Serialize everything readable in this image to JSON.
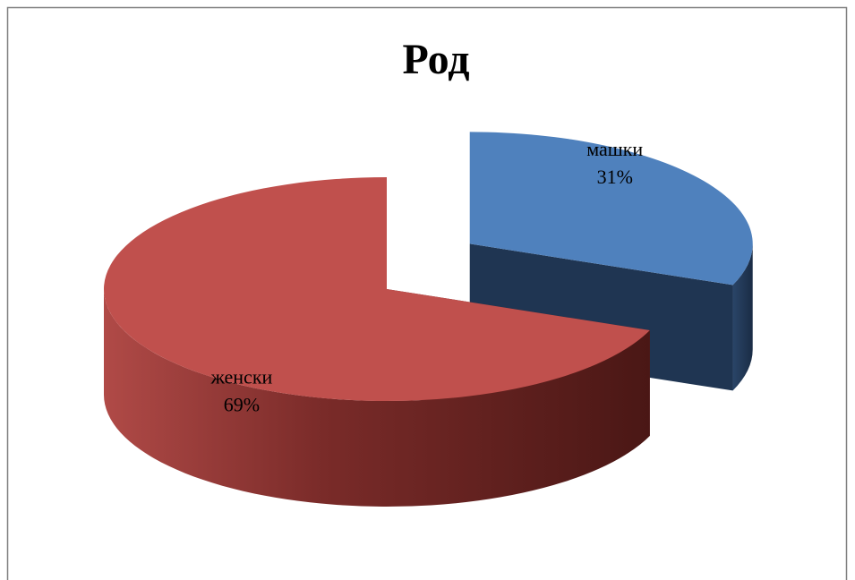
{
  "chart_data": {
    "type": "pie",
    "style": "3d-exploded",
    "title": "Род",
    "slices": [
      {
        "label": "машки",
        "value": 31,
        "value_label": "31%",
        "color": "#4f81bd",
        "side_color": "#1f3552"
      },
      {
        "label": "женски",
        "value": 69,
        "value_label": "69%",
        "color": "#c0504d",
        "side_color": "#5e1d1b"
      }
    ],
    "legend": "none",
    "border_color": "#7f7f7f"
  }
}
